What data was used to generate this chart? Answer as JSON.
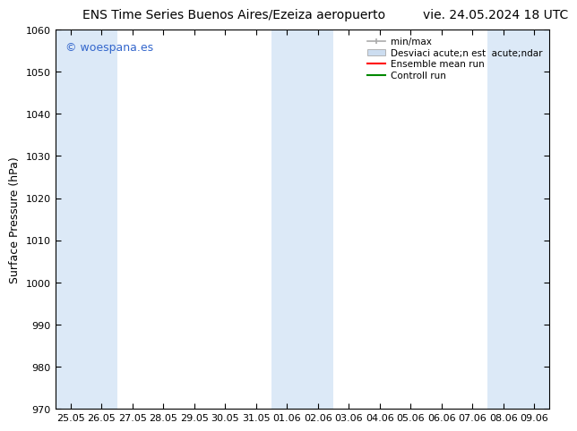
{
  "title_left": "ENS Time Series Buenos Aires/Ezeiza aeropuerto",
  "title_right": "vie. 24.05.2024 18 UTC",
  "ylabel": "Surface Pressure (hPa)",
  "ylim": [
    970,
    1060
  ],
  "yticks": [
    970,
    980,
    990,
    1000,
    1010,
    1020,
    1030,
    1040,
    1050,
    1060
  ],
  "background_color": "#ffffff",
  "plot_bg_color": "#ffffff",
  "shaded_band_color": "#dce9f7",
  "watermark_text": "© woespana.es",
  "watermark_color": "#3366cc",
  "legend_label_minmax": "min/max",
  "legend_label_band": "Desviaci acute;n est  acute;ndar",
  "legend_label_ens": "Ensemble mean run",
  "legend_label_ctrl": "Controll run",
  "legend_color_minmax": "#aaaaaa",
  "legend_color_band": "#ccddf0",
  "legend_color_ens": "#ff0000",
  "legend_color_ctrl": "#008800",
  "x_tick_labels": [
    "25.05",
    "26.05",
    "27.05",
    "28.05",
    "29.05",
    "30.05",
    "31.05",
    "01.06",
    "02.06",
    "03.06",
    "04.06",
    "05.06",
    "06.06",
    "07.06",
    "08.06",
    "09.06"
  ],
  "x_tick_positions": [
    0,
    1,
    2,
    3,
    4,
    5,
    6,
    7,
    8,
    9,
    10,
    11,
    12,
    13,
    14,
    15
  ],
  "shaded_columns": [
    0,
    1,
    7,
    8,
    14,
    15
  ],
  "title_fontsize": 10,
  "axis_label_fontsize": 9,
  "tick_fontsize": 8,
  "watermark_fontsize": 9,
  "legend_fontsize": 7.5
}
